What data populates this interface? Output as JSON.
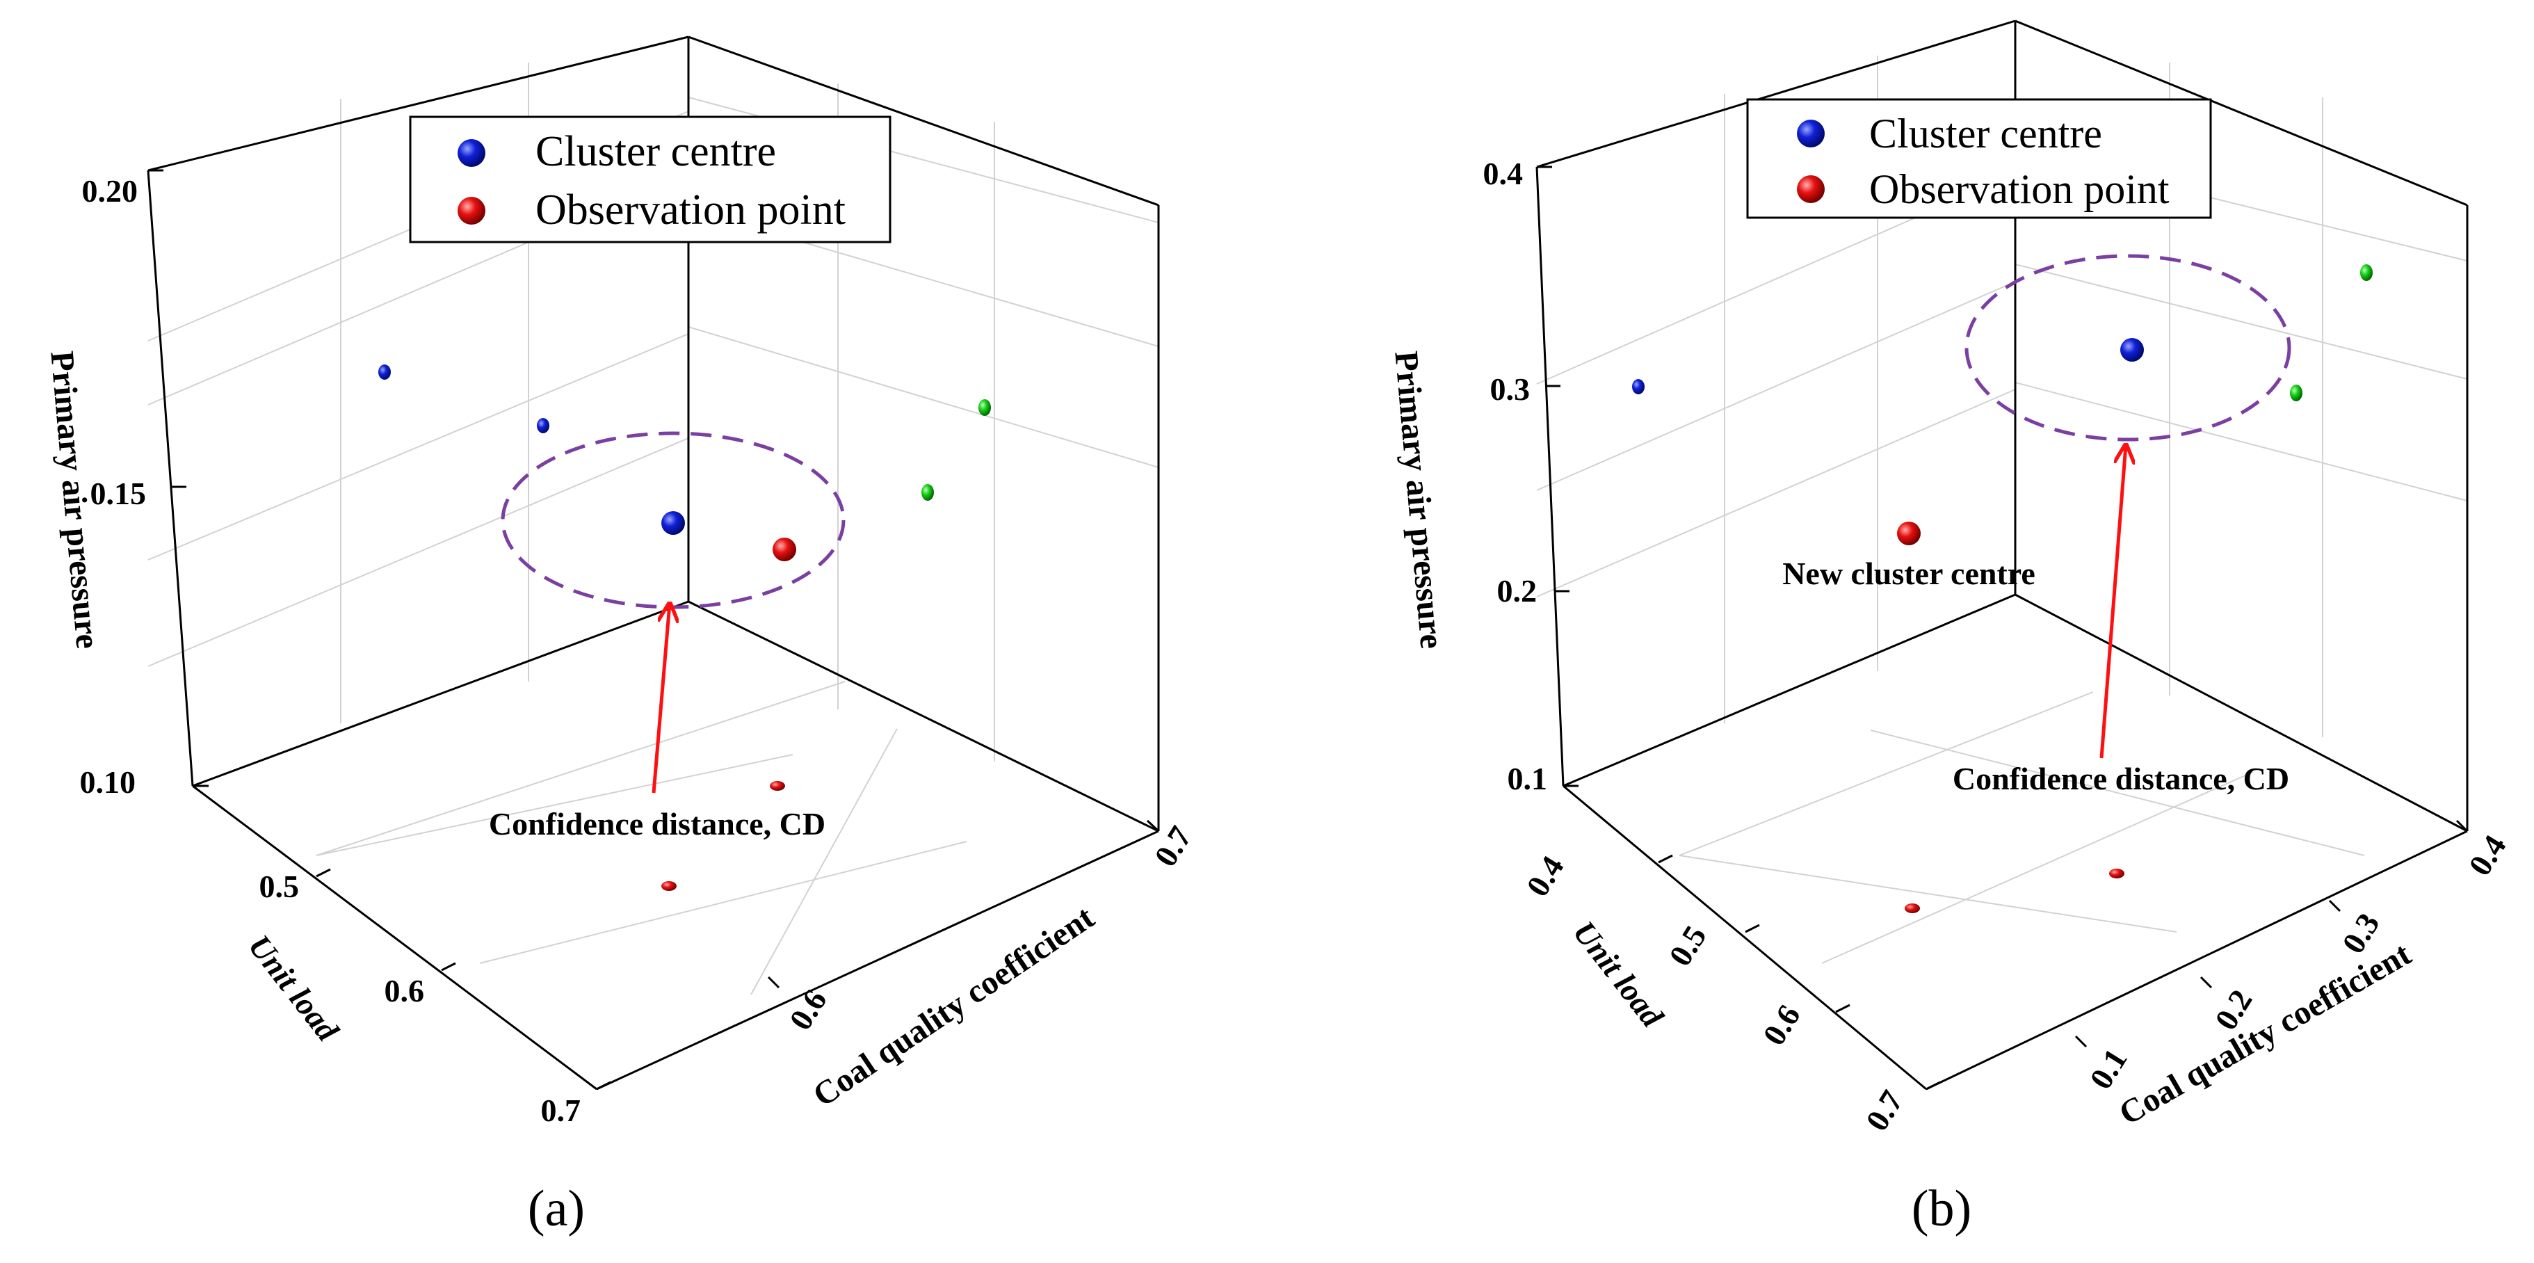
{
  "chart_data": [
    {
      "type": "scatter3d",
      "panel_label": "(a)",
      "zlabel": "Primary air pressure",
      "xlabel": "Unit load",
      "ylabel": "Coal quality coefficient",
      "z_ticks": [
        "0.10",
        "0.15",
        "0.20"
      ],
      "x_ticks": [
        "0.5",
        "0.6",
        "0.7"
      ],
      "y_ticks": [
        "0.6",
        "0.7"
      ],
      "legend": [
        {
          "label": "Cluster centre",
          "color": "#0a14c8"
        },
        {
          "label": "Observation point",
          "color": "#e01010"
        }
      ],
      "annotations": [
        "Confidence distance, CD"
      ],
      "points": [
        {
          "series": "Cluster centre",
          "role": "projection-left-wall"
        },
        {
          "series": "Cluster centre",
          "role": "projection-left-wall"
        },
        {
          "series": "Cluster centre",
          "role": "cluster"
        },
        {
          "series": "Observation point",
          "role": "observation"
        },
        {
          "series": "projection",
          "role": "projection-right-wall"
        },
        {
          "series": "projection",
          "role": "projection-right-wall"
        },
        {
          "series": "Observation point",
          "role": "projection-floor"
        },
        {
          "series": "Observation point",
          "role": "projection-floor"
        }
      ]
    },
    {
      "type": "scatter3d",
      "panel_label": "(b)",
      "zlabel": "Primary air pressure",
      "xlabel": "Unit load",
      "ylabel": "Coal quality coefficient",
      "z_ticks": [
        "0.1",
        "0.2",
        "0.3",
        "0.4"
      ],
      "x_ticks": [
        "0.4",
        "0.5",
        "0.6",
        "0.7"
      ],
      "y_ticks": [
        "0.1",
        "0.2",
        "0.3",
        "0.4"
      ],
      "legend": [
        {
          "label": "Cluster centre",
          "color": "#0a14c8"
        },
        {
          "label": "Observation point",
          "color": "#e01010"
        }
      ],
      "annotations": [
        "Confidence distance, CD",
        "New cluster centre"
      ],
      "points": [
        {
          "series": "Cluster centre",
          "role": "projection-left-wall"
        },
        {
          "series": "Cluster centre",
          "role": "cluster"
        },
        {
          "series": "Observation point",
          "role": "new-cluster-centre"
        },
        {
          "series": "projection",
          "role": "projection-right-wall"
        },
        {
          "series": "projection",
          "role": "projection-right-wall"
        },
        {
          "series": "Observation point",
          "role": "projection-floor"
        },
        {
          "series": "Observation point",
          "role": "projection-floor"
        }
      ]
    }
  ],
  "colors": {
    "cluster": "#0a14c8",
    "observation": "#e01010",
    "projection": "#18d018",
    "ellipse": "#7a3fa0",
    "arrow": "#ff1010",
    "grid": "#cfcfcf"
  }
}
